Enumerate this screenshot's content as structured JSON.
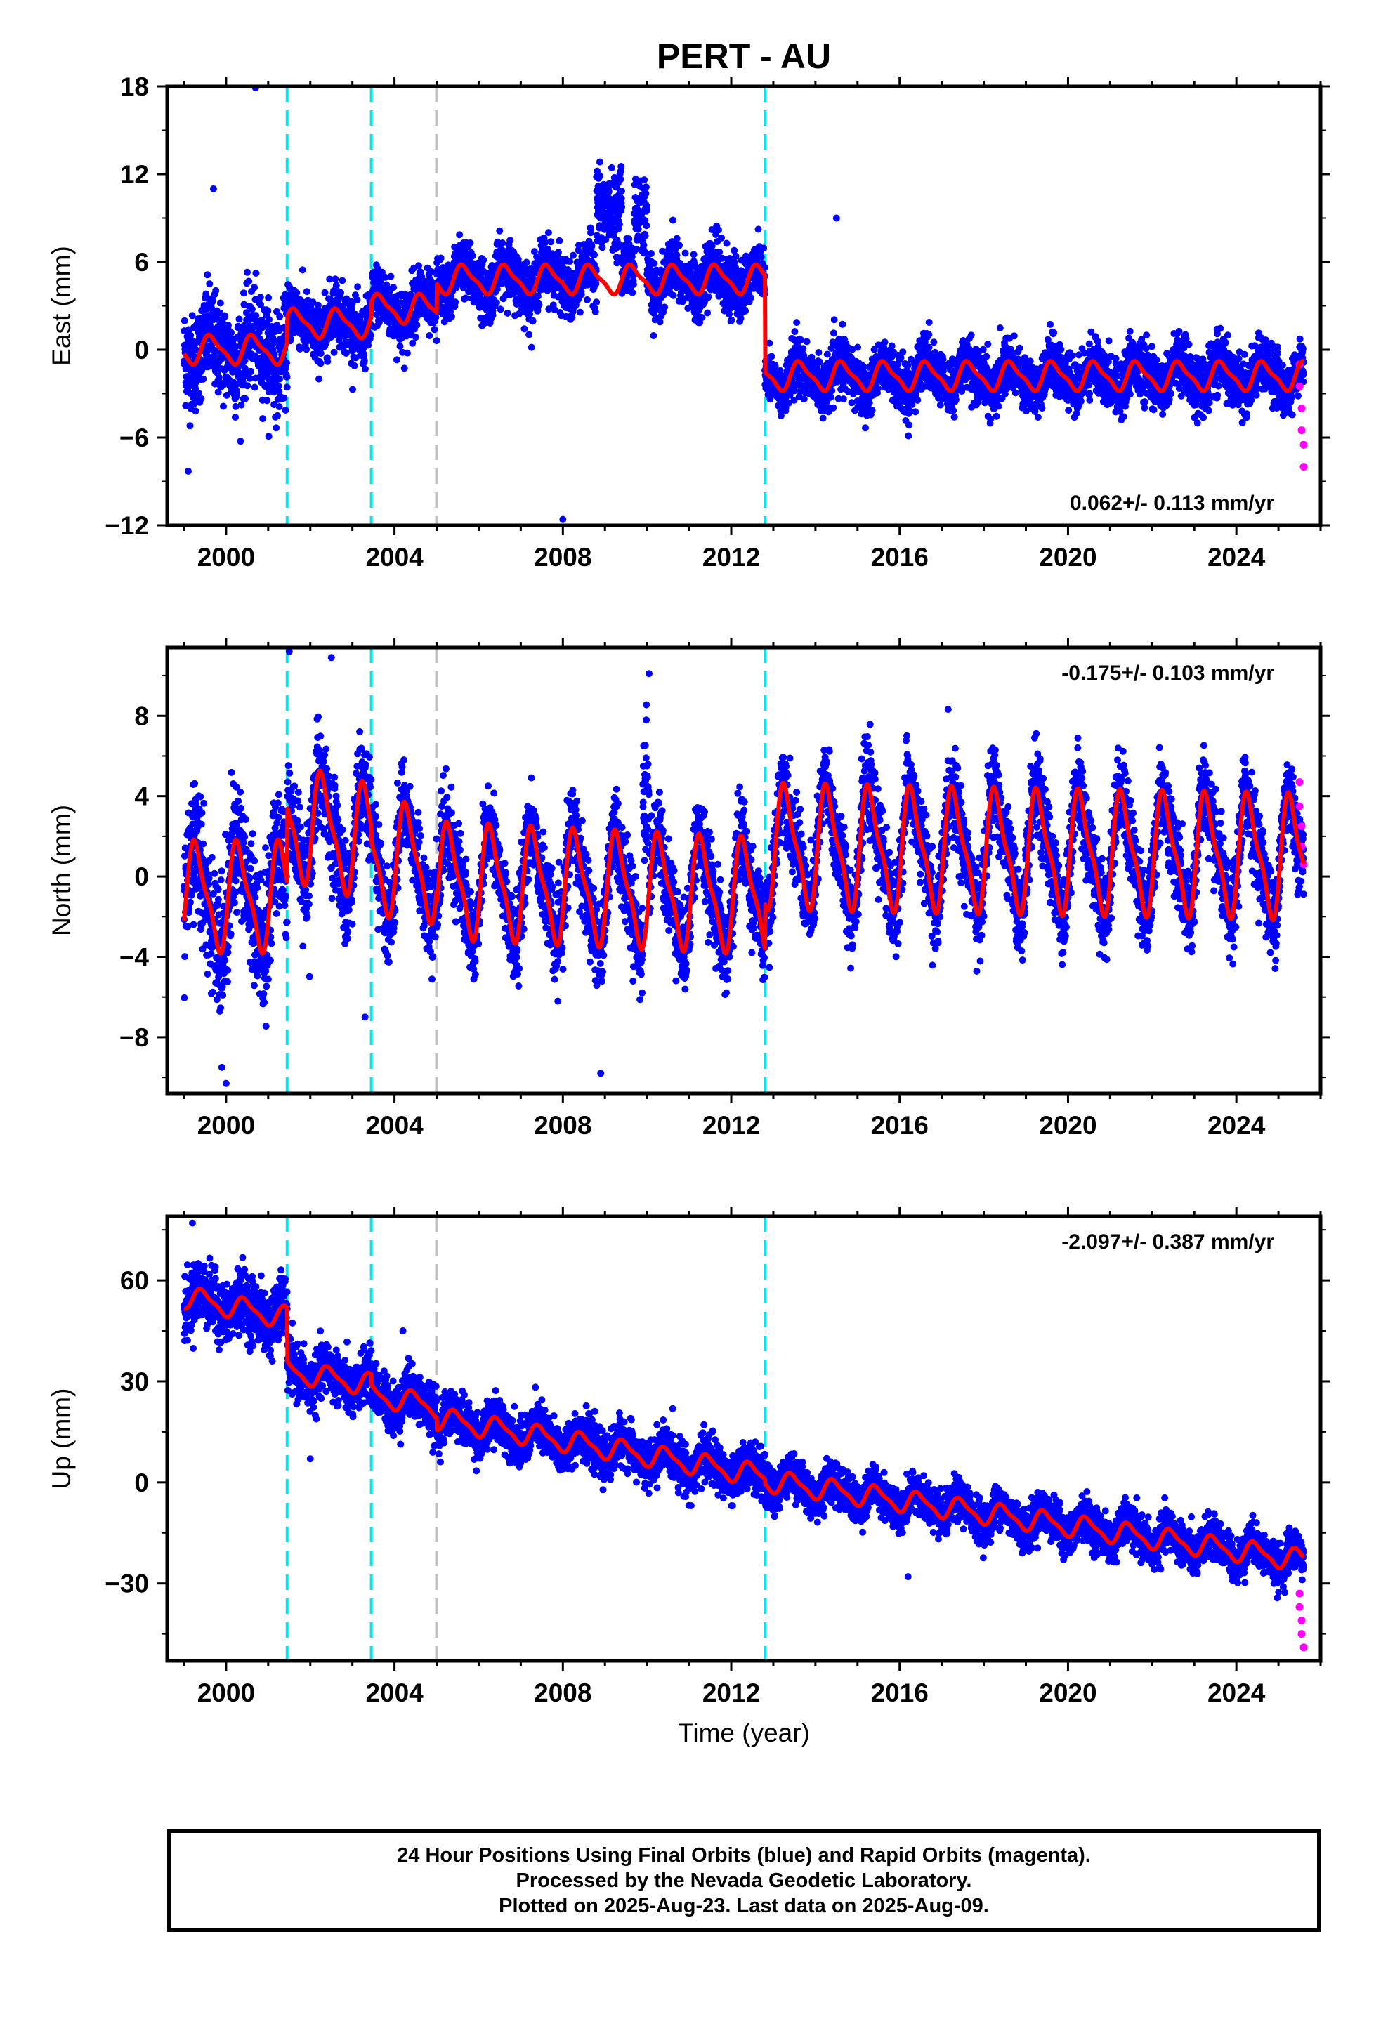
{
  "chart_data": {
    "type": "scatter",
    "title": "PERT - AU",
    "xlabel": "Time (year)",
    "x_range": [
      1998.6,
      2026.0
    ],
    "x_ticks": [
      2000,
      2004,
      2008,
      2012,
      2016,
      2020,
      2024
    ],
    "x_tick_labels": [
      "2000",
      "2004",
      "2008",
      "2012",
      "2016",
      "2020",
      "2024"
    ],
    "grid": false,
    "colors": {
      "final_orbits": "#0000ff",
      "rapid_orbits": "#ff00ff",
      "model_fit": "#ff0000",
      "equipment_change": "#00e5ee",
      "other_event": "#c0c0c0"
    },
    "offset_lines": [
      {
        "x": 2001.45,
        "kind": "equipment_change"
      },
      {
        "x": 2003.45,
        "kind": "equipment_change"
      },
      {
        "x": 2005.0,
        "kind": "other_event"
      },
      {
        "x": 2012.8,
        "kind": "equipment_change"
      }
    ],
    "data_start": 1999.0,
    "data_end": 2025.6,
    "panels": [
      {
        "id": "east",
        "ylabel": "East (mm)",
        "ylim": [
          -12,
          18
        ],
        "yticks": [
          -12,
          -6,
          0,
          6,
          12,
          18
        ],
        "ytick_labels": [
          "−12",
          "−6",
          "0",
          "6",
          "12",
          "18"
        ],
        "rate_label": "0.062+/- 0.113 mm/yr",
        "rate_position": "bottom-right",
        "segments": [
          {
            "start": 1999.0,
            "end": 2001.45,
            "offset": 0.0,
            "trend": 0.0,
            "annual": 0.9,
            "phase": 0.4,
            "spread": 2.2
          },
          {
            "start": 2001.45,
            "end": 2003.45,
            "offset": 1.8,
            "trend": 0.0,
            "annual": 0.9,
            "phase": 0.4,
            "spread": 1.4
          },
          {
            "start": 2003.45,
            "end": 2005.0,
            "offset": 2.8,
            "trend": 0.0,
            "annual": 0.9,
            "phase": 0.4,
            "spread": 1.4
          },
          {
            "start": 2005.0,
            "end": 2012.8,
            "offset": 4.8,
            "trend": 0.0,
            "annual": 0.9,
            "phase": 0.4,
            "spread": 1.3
          },
          {
            "start": 2012.8,
            "end": 2025.6,
            "offset": -1.8,
            "trend": 0.0,
            "annual": 0.9,
            "phase": 0.4,
            "spread": 1.2
          }
        ],
        "anomalies": [
          {
            "start": 2008.8,
            "end": 2009.4,
            "shift": 5.5
          },
          {
            "start": 2009.7,
            "end": 2010.0,
            "shift": 4.5
          }
        ],
        "outliers": [
          {
            "x": 2000.7,
            "y": 17.9
          },
          {
            "x": 2008.0,
            "y": -11.6
          },
          {
            "x": 2014.5,
            "y": 9.0
          },
          {
            "x": 1999.1,
            "y": -8.3
          },
          {
            "x": 1999.7,
            "y": 11.0
          }
        ],
        "rapid_points": [
          {
            "x": 2025.5,
            "y": -1.0
          },
          {
            "x": 2025.5,
            "y": -2.5
          },
          {
            "x": 2025.55,
            "y": -4.0
          },
          {
            "x": 2025.55,
            "y": -5.5
          },
          {
            "x": 2025.6,
            "y": -6.5
          },
          {
            "x": 2025.6,
            "y": -8.0
          }
        ]
      },
      {
        "id": "north",
        "ylabel": "North (mm)",
        "ylim": [
          -10.8,
          11.4
        ],
        "yticks": [
          -8,
          -4,
          0,
          4,
          8
        ],
        "ytick_labels": [
          "−8",
          "−4",
          "0",
          "4",
          "8"
        ],
        "rate_label": "-0.175+/- 0.103 mm/yr",
        "rate_position": "top-right",
        "segments": [
          {
            "start": 1999.0,
            "end": 2001.45,
            "offset": -1.0,
            "trend": 0.0,
            "annual": 2.5,
            "phase": 0.05,
            "spread": 2.2
          },
          {
            "start": 2001.45,
            "end": 2003.45,
            "offset": 2.7,
            "trend": -0.5,
            "annual": 2.6,
            "phase": 0.05,
            "spread": 1.6
          },
          {
            "start": 2003.45,
            "end": 2005.0,
            "offset": 1.0,
            "trend": -0.3,
            "annual": 2.6,
            "phase": 0.05,
            "spread": 1.4
          },
          {
            "start": 2005.0,
            "end": 2012.8,
            "offset": -0.2,
            "trend": -0.1,
            "annual": 2.6,
            "phase": 0.05,
            "spread": 1.4
          },
          {
            "start": 2012.8,
            "end": 2025.6,
            "offset": 1.5,
            "trend": -0.04,
            "annual": 2.8,
            "phase": 0.05,
            "spread": 1.4
          }
        ],
        "anomalies": [
          {
            "start": 2009.9,
            "end": 2010.05,
            "shift": 7.5
          }
        ],
        "outliers": [
          {
            "x": 2000.0,
            "y": -10.3
          },
          {
            "x": 1999.9,
            "y": -9.5
          },
          {
            "x": 2001.5,
            "y": 11.2
          },
          {
            "x": 2002.5,
            "y": 10.9
          },
          {
            "x": 2003.3,
            "y": -7.0
          },
          {
            "x": 2008.9,
            "y": -9.8
          }
        ],
        "rapid_points": [
          {
            "x": 2025.5,
            "y": 4.7
          },
          {
            "x": 2025.5,
            "y": 3.5
          },
          {
            "x": 2025.55,
            "y": 2.5
          },
          {
            "x": 2025.55,
            "y": 1.5
          },
          {
            "x": 2025.6,
            "y": 0.6
          }
        ]
      },
      {
        "id": "up",
        "ylabel": "Up (mm)",
        "ylim": [
          -53,
          79
        ],
        "yticks": [
          -30,
          0,
          30,
          60
        ],
        "ytick_labels": [
          "−30",
          "0",
          "30",
          "60"
        ],
        "rate_label": "-2.097+/- 0.387 mm/yr",
        "rate_position": "top-right",
        "segments": [
          {
            "start": 1999.0,
            "end": 2001.45,
            "offset": 55.0,
            "trend": -2.5,
            "annual": 3.0,
            "phase": 0.2,
            "spread": 6.0
          },
          {
            "start": 2001.45,
            "end": 2003.45,
            "offset": 33.0,
            "trend": -2.0,
            "annual": 3.0,
            "phase": 0.2,
            "spread": 5.0
          },
          {
            "start": 2003.45,
            "end": 2005.0,
            "offset": 26.0,
            "trend": -2.2,
            "annual": 3.0,
            "phase": 0.2,
            "spread": 5.0
          },
          {
            "start": 2005.0,
            "end": 2012.8,
            "offset": 19.0,
            "trend": -2.2,
            "annual": 3.0,
            "phase": 0.2,
            "spread": 4.5
          },
          {
            "start": 2012.8,
            "end": 2025.6,
            "offset": 0.5,
            "trend": -1.85,
            "annual": 3.0,
            "phase": 0.2,
            "spread": 4.0
          }
        ],
        "anomalies": [],
        "outliers": [
          {
            "x": 1999.2,
            "y": 77.0
          },
          {
            "x": 2002.0,
            "y": 7.0
          },
          {
            "x": 2004.2,
            "y": 45.0
          },
          {
            "x": 2016.2,
            "y": -28.0
          }
        ],
        "rapid_points": [
          {
            "x": 2025.5,
            "y": -33.0
          },
          {
            "x": 2025.5,
            "y": -37.0
          },
          {
            "x": 2025.55,
            "y": -41.0
          },
          {
            "x": 2025.55,
            "y": -45.0
          },
          {
            "x": 2025.6,
            "y": -49.0
          }
        ]
      }
    ]
  },
  "footer": {
    "line1": "24 Hour Positions Using Final Orbits (blue) and Rapid Orbits (magenta).",
    "line2": "Processed by the Nevada Geodetic Laboratory.",
    "line3": "Plotted on 2025-Aug-23. Last data on 2025-Aug-09."
  }
}
